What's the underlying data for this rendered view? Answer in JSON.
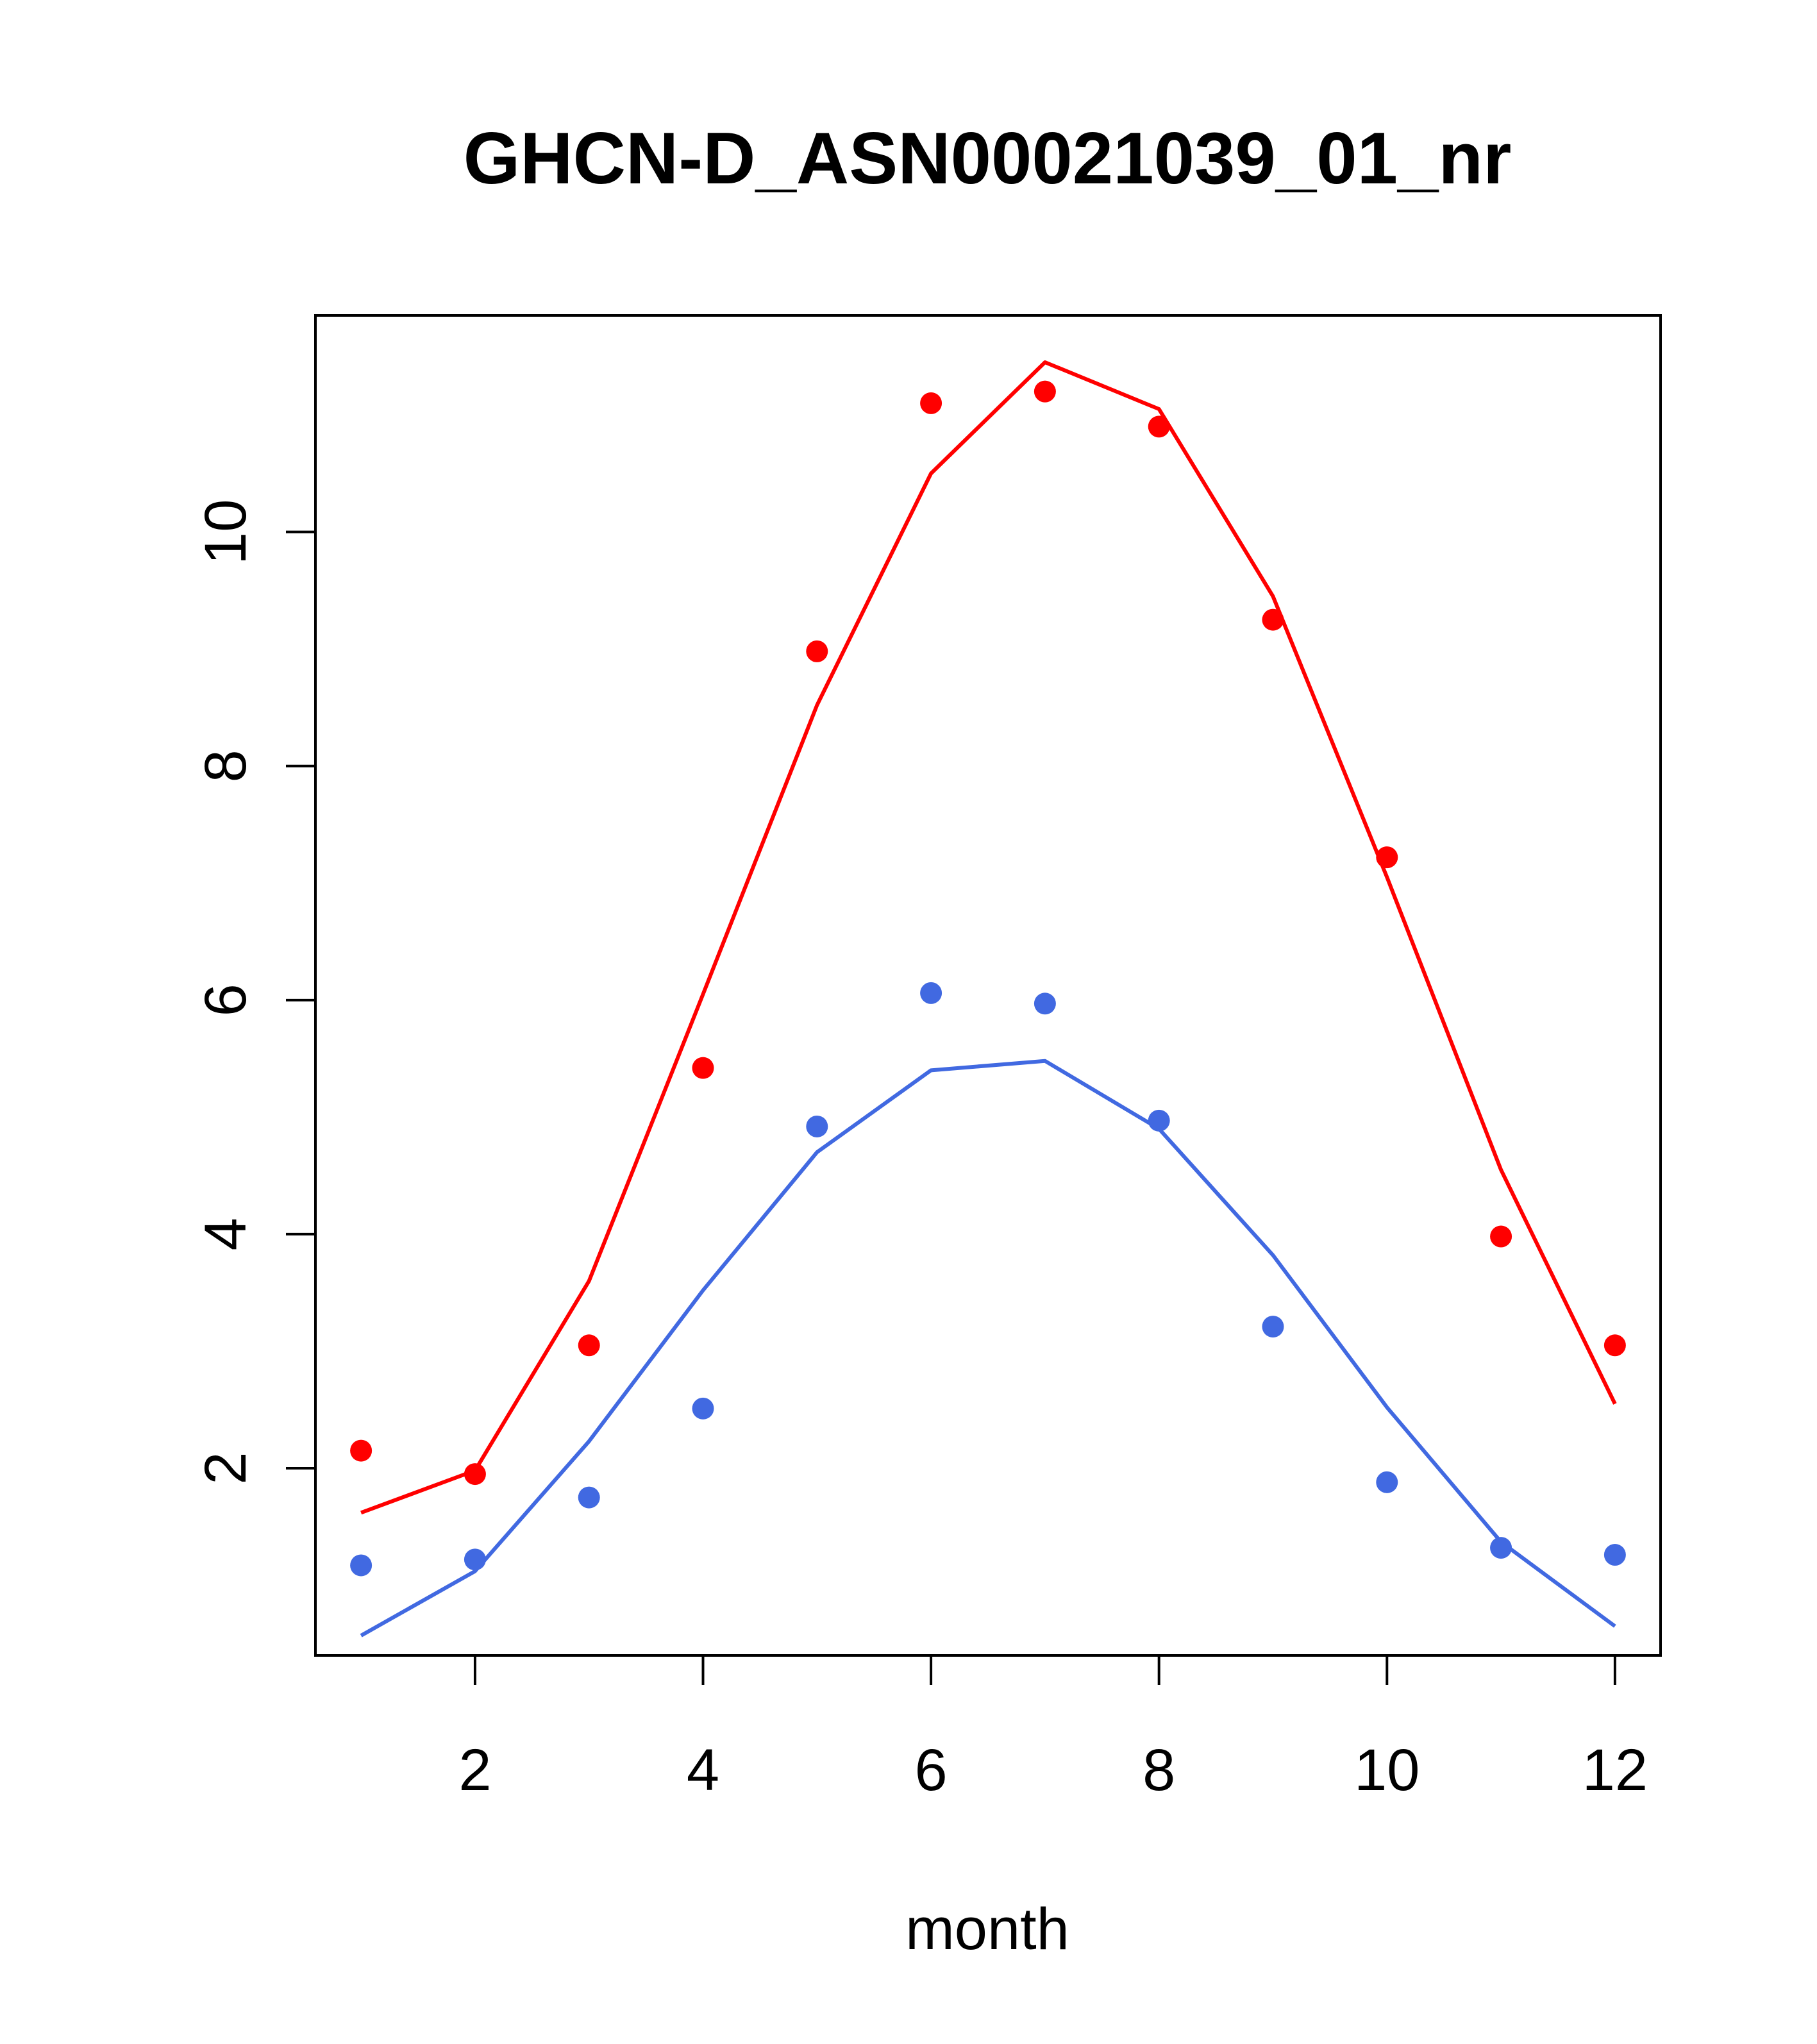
{
  "chart_data": {
    "type": "line",
    "title": "GHCN-D_ASN00021039_01_nr",
    "xlabel": "month",
    "ylabel": "",
    "xlim": [
      0.6,
      12.4
    ],
    "ylim": [
      0.4,
      11.85
    ],
    "x_ticks": [
      2,
      4,
      6,
      8,
      10,
      12
    ],
    "y_ticks": [
      2,
      4,
      6,
      8,
      10
    ],
    "x_tick_labels": [
      "2",
      "4",
      "6",
      "8",
      "10",
      "12"
    ],
    "y_tick_labels": [
      "2",
      "4",
      "6",
      "8",
      "10"
    ],
    "grid": false,
    "x": [
      1,
      2,
      3,
      4,
      5,
      6,
      7,
      8,
      9,
      10,
      11,
      12
    ],
    "series": [
      {
        "color": "#ff0000",
        "points": [
          2.15,
          1.95,
          3.05,
          5.42,
          8.98,
          11.1,
          11.2,
          10.9,
          9.25,
          7.22,
          3.98,
          3.05
        ],
        "fit": [
          1.62,
          1.98,
          3.6,
          6.05,
          8.52,
          10.5,
          11.45,
          11.05,
          9.45,
          7.05,
          4.55,
          2.55
        ]
      },
      {
        "color": "#4169e1",
        "points": [
          1.17,
          1.22,
          1.75,
          2.51,
          4.92,
          6.06,
          5.97,
          4.97,
          3.21,
          1.88,
          1.32,
          1.26
        ],
        "fit": [
          0.57,
          1.12,
          2.23,
          3.52,
          4.7,
          5.4,
          5.48,
          4.9,
          3.82,
          2.52,
          1.37,
          0.65
        ]
      }
    ]
  }
}
